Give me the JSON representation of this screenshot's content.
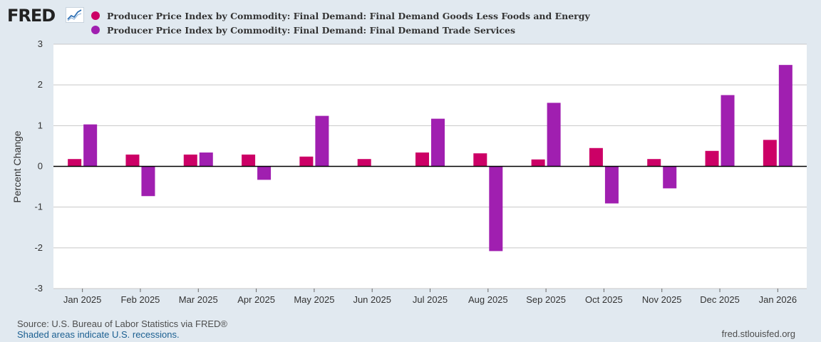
{
  "header": {
    "logo": "FRED",
    "logo_icon": "line-chart-icon"
  },
  "colors": {
    "series1": "#cc0066",
    "series2": "#a01fb0",
    "grid": "#c8c8c8",
    "plot_bg": "#ffffff",
    "page_bg": "#e1e9f0"
  },
  "chart_data": {
    "type": "bar",
    "title": "",
    "xlabel": "",
    "ylabel": "Percent Change",
    "ylim": [
      -3,
      3
    ],
    "yticks": [
      "3",
      "2",
      "1",
      "0",
      "-1",
      "-2",
      "-3"
    ],
    "grid": true,
    "legend_position": "top-left",
    "categories": [
      "Jan 2025",
      "Feb 2025",
      "Mar 2025",
      "Apr 2025",
      "May 2025",
      "Jun 2025",
      "Jul 2025",
      "Aug 2025",
      "Sep 2025",
      "Oct 2025",
      "Nov 2025",
      "Dec 2025",
      "Jan 2026"
    ],
    "series": [
      {
        "name": "Producer Price Index by Commodity: Final Demand: Final Demand Goods Less Foods and Energy",
        "color": "#cc0066",
        "values": [
          0.18,
          0.29,
          0.29,
          0.29,
          0.24,
          0.18,
          0.34,
          0.32,
          0.17,
          0.45,
          0.18,
          0.38,
          0.65
        ]
      },
      {
        "name": "Producer Price Index by Commodity: Final Demand: Final Demand Trade Services",
        "color": "#a01fb0",
        "values": [
          1.03,
          -0.73,
          0.34,
          -0.33,
          1.24,
          0.0,
          1.17,
          -2.08,
          1.56,
          -0.91,
          -0.54,
          1.75,
          2.49
        ]
      }
    ]
  },
  "footer": {
    "source": "Source: U.S. Bureau of Labor Statistics via FRED®",
    "recession_note": "Shaded areas indicate U.S. recessions.",
    "url": "fred.stlouisfed.org"
  }
}
